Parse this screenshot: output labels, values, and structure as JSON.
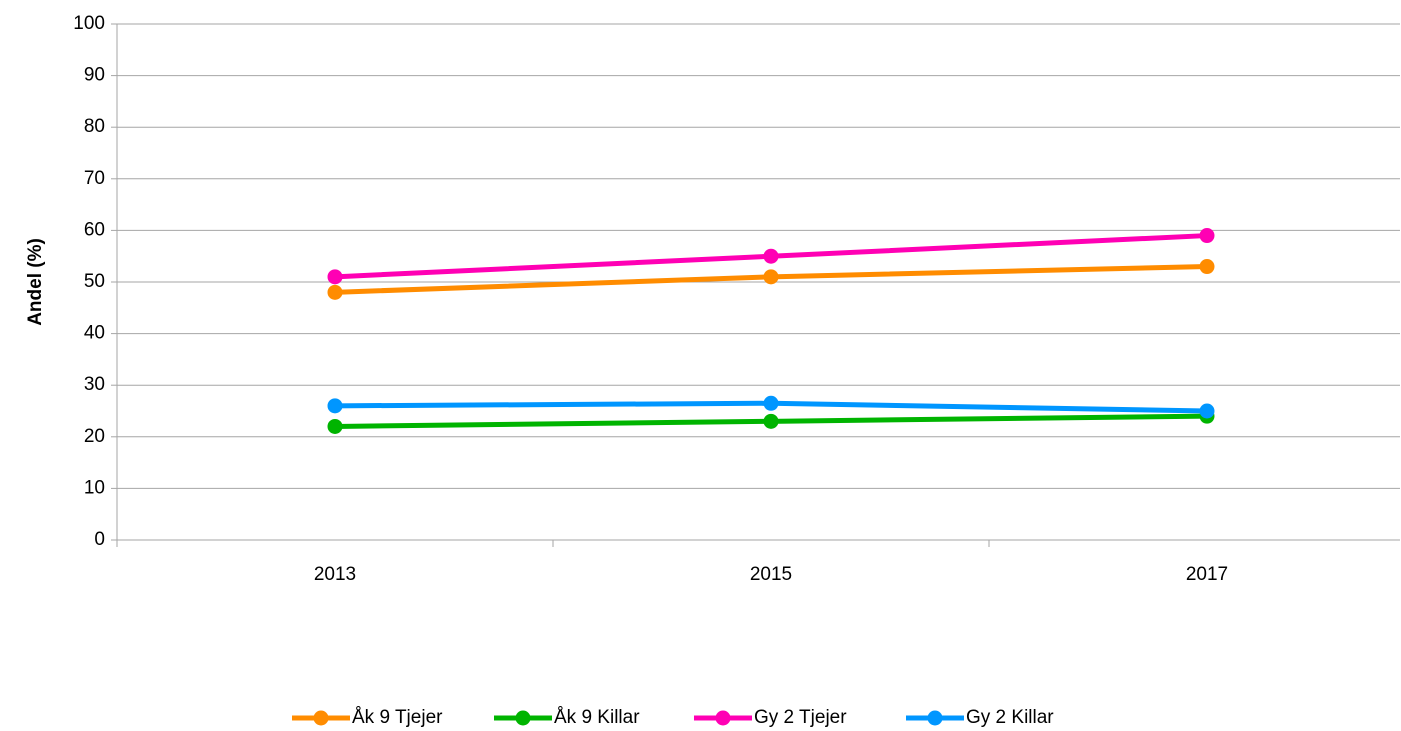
{
  "chart_data": {
    "type": "line",
    "y_label": "Andel (%)",
    "categories": [
      "2013",
      "2015",
      "2017"
    ],
    "series": [
      {
        "name": "Åk 9 Tjejer",
        "color": "#ff8c00",
        "values": [
          48,
          51,
          53
        ]
      },
      {
        "name": "Åk 9 Killar",
        "color": "#00b400",
        "values": [
          22,
          23,
          24
        ]
      },
      {
        "name": "Gy 2 Tjejer",
        "color": "#ff00b4",
        "values": [
          51,
          55,
          59
        ]
      },
      {
        "name": "Gy 2 Killar",
        "color": "#0096ff",
        "values": [
          26,
          26.5,
          25
        ]
      }
    ],
    "ylim": [
      0,
      100
    ],
    "yticks": [
      0,
      10,
      20,
      30,
      40,
      50,
      60,
      70,
      80,
      90,
      100
    ],
    "grid": true,
    "legend": "bottom"
  }
}
